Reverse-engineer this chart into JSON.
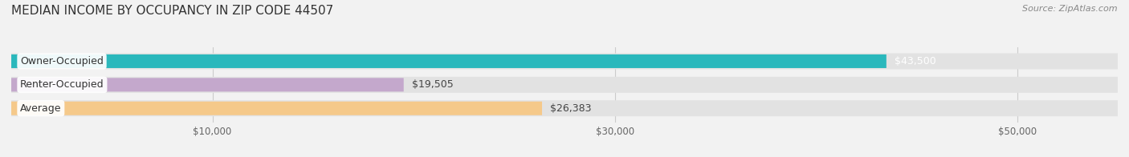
{
  "title": "MEDIAN INCOME BY OCCUPANCY IN ZIP CODE 44507",
  "source": "Source: ZipAtlas.com",
  "categories": [
    "Owner-Occupied",
    "Renter-Occupied",
    "Average"
  ],
  "values": [
    43500,
    19505,
    26383
  ],
  "bar_colors": [
    "#2ab8bc",
    "#c4a8cc",
    "#f5c98a"
  ],
  "value_labels": [
    "$43,500",
    "$19,505",
    "$26,383"
  ],
  "value_label_colors": [
    "#ffffff",
    "#444444",
    "#444444"
  ],
  "x_ticks": [
    10000,
    30000,
    50000
  ],
  "x_tick_labels": [
    "$10,000",
    "$30,000",
    "$50,000"
  ],
  "xlim": [
    0,
    55000
  ],
  "background_color": "#f2f2f2",
  "bar_bg_color": "#e2e2e2",
  "title_fontsize": 11,
  "source_fontsize": 8,
  "label_fontsize": 9,
  "value_fontsize": 9
}
